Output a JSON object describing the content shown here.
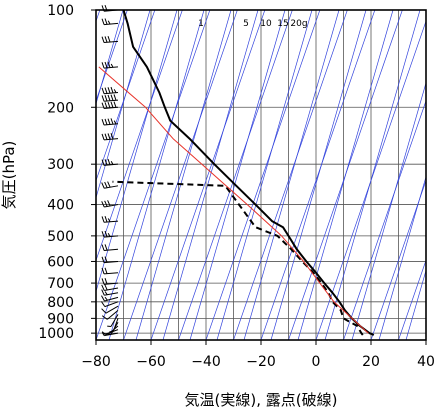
{
  "chart_data": {
    "type": "line",
    "title": "",
    "xlabel": "気温(実線), 露点(破線)",
    "ylabel": "気圧(hPa)",
    "x_axis": {
      "min": -80,
      "max": 40,
      "ticks": [
        -80,
        -60,
        -40,
        -20,
        0,
        20,
        40
      ]
    },
    "y_axis": {
      "scale": "log",
      "reversed": true,
      "min": 100,
      "max": 1050,
      "ticks": [
        100,
        200,
        300,
        400,
        500,
        600,
        700,
        800,
        900,
        1000
      ]
    },
    "mixing_ratio_labels": [
      "1",
      "5",
      "10",
      "15",
      "20g"
    ],
    "series": [
      {
        "role": "temperature",
        "style": "solid",
        "color": "#000000",
        "points": [
          {
            "p": 1013,
            "t": 21.0
          },
          {
            "p": 1000,
            "t": 19.5
          },
          {
            "p": 950,
            "t": 16.0
          },
          {
            "p": 900,
            "t": 13.0
          },
          {
            "p": 850,
            "t": 10.5
          },
          {
            "p": 800,
            "t": 8.5
          },
          {
            "p": 750,
            "t": 6.0
          },
          {
            "p": 700,
            "t": 3.0
          },
          {
            "p": 650,
            "t": 0.0
          },
          {
            "p": 600,
            "t": -3.5
          },
          {
            "p": 550,
            "t": -7.0
          },
          {
            "p": 500,
            "t": -10.0
          },
          {
            "p": 470,
            "t": -12.0
          },
          {
            "p": 450,
            "t": -16.0
          },
          {
            "p": 400,
            "t": -22.0
          },
          {
            "p": 350,
            "t": -29.0
          },
          {
            "p": 300,
            "t": -37.0
          },
          {
            "p": 250,
            "t": -46.0
          },
          {
            "p": 220,
            "t": -53.0
          },
          {
            "p": 200,
            "t": -55.0
          },
          {
            "p": 180,
            "t": -57.0
          },
          {
            "p": 150,
            "t": -61.5
          },
          {
            "p": 130,
            "t": -66.5
          },
          {
            "p": 110,
            "t": -68.5
          },
          {
            "p": 100,
            "t": -70.0
          }
        ]
      },
      {
        "role": "dewpoint",
        "style": "dashed",
        "color": "#000000",
        "points": [
          {
            "p": 1013,
            "t": 17.0
          },
          {
            "p": 1000,
            "t": 16.5
          },
          {
            "p": 950,
            "t": 15.0
          },
          {
            "p": 900,
            "t": 10.0
          },
          {
            "p": 850,
            "t": 9.0
          },
          {
            "p": 800,
            "t": 6.0
          },
          {
            "p": 750,
            "t": 4.5
          },
          {
            "p": 700,
            "t": 2.0
          },
          {
            "p": 650,
            "t": -1.0
          },
          {
            "p": 600,
            "t": -5.0
          },
          {
            "p": 550,
            "t": -9.0
          },
          {
            "p": 500,
            "t": -14.0
          },
          {
            "p": 470,
            "t": -22.0
          },
          {
            "p": 400,
            "t": -28.0
          },
          {
            "p": 350,
            "t": -33.0
          },
          {
            "p": 340,
            "t": -74.0
          }
        ]
      },
      {
        "role": "reference",
        "style": "solid",
        "color": "#e8332a",
        "points": [
          {
            "p": 1000,
            "t": 19.0
          },
          {
            "p": 800,
            "t": 6.5
          },
          {
            "p": 600,
            "t": -4.5
          },
          {
            "p": 500,
            "t": -12.5
          },
          {
            "p": 400,
            "t": -25.0
          },
          {
            "p": 300,
            "t": -41.5
          },
          {
            "p": 250,
            "t": -52.0
          },
          {
            "p": 200,
            "t": -62.0
          },
          {
            "p": 150,
            "t": -79.0
          }
        ]
      }
    ],
    "wind_barbs": {
      "x_temperature": -72,
      "levels": [
        1000,
        975,
        950,
        925,
        900,
        875,
        850,
        825,
        800,
        775,
        750,
        725,
        700,
        650,
        600,
        550,
        500,
        450,
        400,
        350,
        300,
        250,
        225,
        200,
        190,
        180,
        150,
        125,
        110,
        100
      ],
      "directions_deg": [
        260,
        250,
        230,
        210,
        200,
        210,
        230,
        240,
        250,
        255,
        260,
        260,
        265,
        265,
        265,
        265,
        265,
        265,
        260,
        260,
        265,
        265,
        265,
        265,
        265,
        265,
        265,
        265,
        265,
        265
      ],
      "speeds_kt": [
        5,
        5,
        5,
        5,
        5,
        5,
        10,
        10,
        10,
        15,
        15,
        20,
        20,
        20,
        20,
        20,
        25,
        25,
        30,
        30,
        35,
        40,
        45,
        50,
        50,
        45,
        35,
        30,
        25,
        20
      ]
    }
  }
}
